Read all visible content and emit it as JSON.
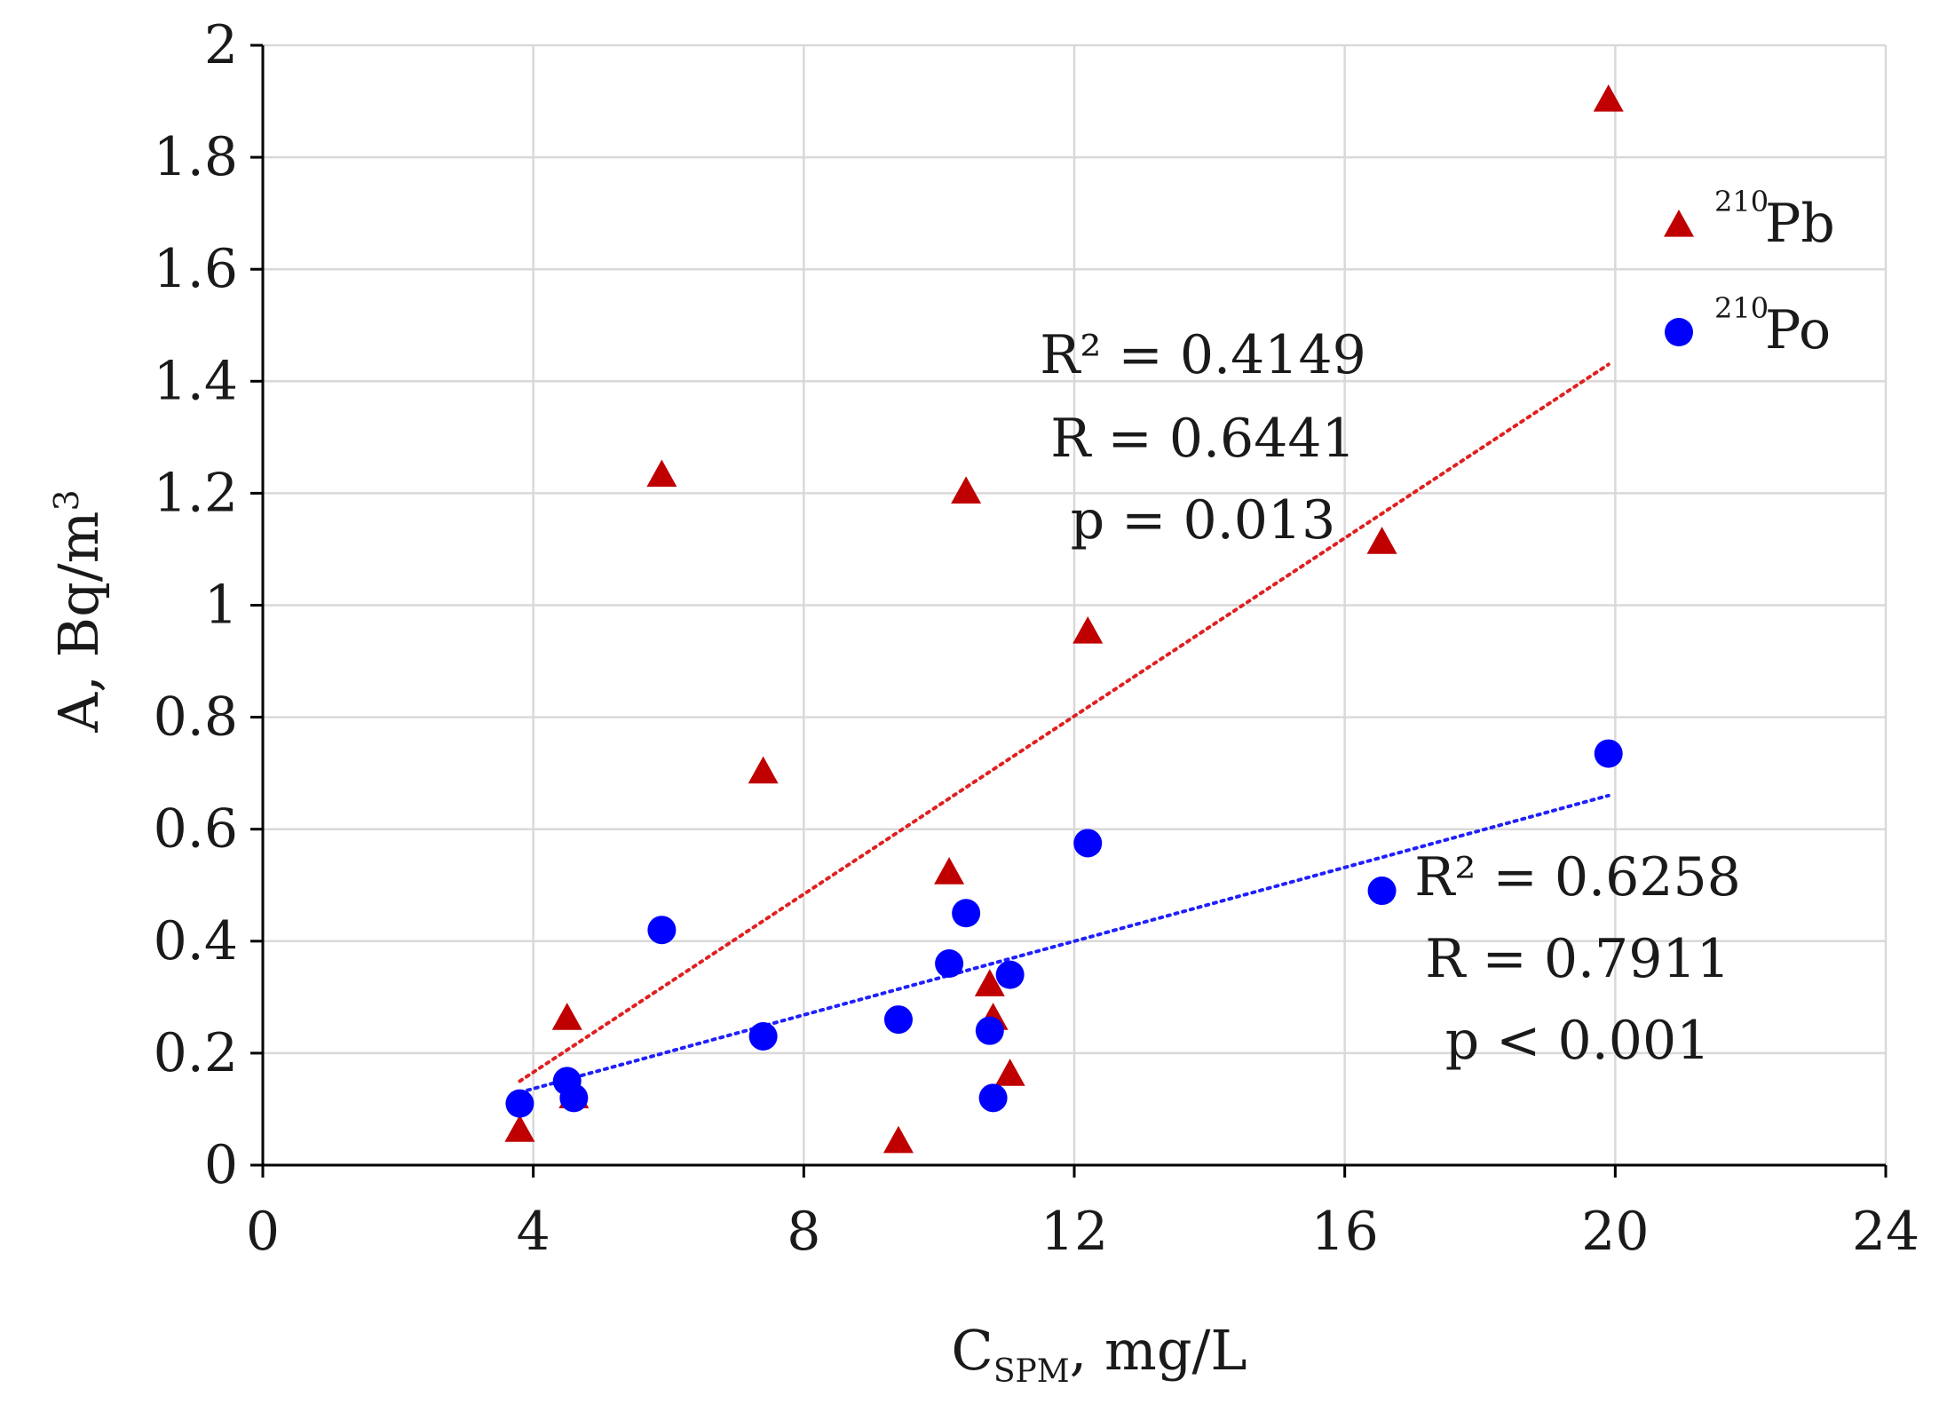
{
  "chart_data": {
    "type": "scatter",
    "title": "",
    "xlabel": {
      "main": "C",
      "sub": "SPM",
      "rest": ", mg/L"
    },
    "ylabel": {
      "main": "A, Bq/m",
      "sup": "3"
    },
    "xlim": [
      0,
      24
    ],
    "ylim": [
      0,
      2
    ],
    "xticks": [
      0,
      4,
      8,
      12,
      16,
      20,
      24
    ],
    "yticks": [
      0,
      0.2,
      0.4,
      0.6,
      0.8,
      1,
      1.2,
      1.4,
      1.6,
      1.8,
      2
    ],
    "xtick_labels": [
      "0",
      "4",
      "8",
      "12",
      "16",
      "20",
      "24"
    ],
    "ytick_labels": [
      "0",
      "0.2",
      "0.4",
      "0.6",
      "0.8",
      "1",
      "1.2",
      "1.4",
      "1.6",
      "1.8",
      "2"
    ],
    "grid": true,
    "legend_position": "top-right",
    "series": [
      {
        "name": "Pb",
        "isotope": "210",
        "marker": "triangle",
        "color": "#c00000",
        "x": [
          3.8,
          4.5,
          4.6,
          5.9,
          7.4,
          9.4,
          10.15,
          10.75,
          10.8,
          11.05,
          12.2,
          10.4,
          16.55,
          19.9
        ],
        "y": [
          0.06,
          0.26,
          0.12,
          1.23,
          0.7,
          0.04,
          0.52,
          0.32,
          0.26,
          0.16,
          0.95,
          1.2,
          1.11,
          1.9
        ],
        "trendline": {
          "x": [
            3.8,
            19.9
          ],
          "y": [
            0.15,
            1.43
          ],
          "color": "#e02020"
        },
        "stats": [
          "R² = 0.4149",
          "R = 0.6441",
          "p = 0.013"
        ]
      },
      {
        "name": "Po",
        "isotope": "210",
        "marker": "circle",
        "color": "#0000ff",
        "x": [
          3.8,
          4.5,
          4.6,
          5.9,
          7.4,
          9.4,
          10.15,
          10.4,
          10.75,
          10.8,
          11.05,
          12.2,
          16.55,
          19.9
        ],
        "y": [
          0.11,
          0.15,
          0.12,
          0.42,
          0.23,
          0.26,
          0.36,
          0.45,
          0.24,
          0.12,
          0.34,
          0.575,
          0.49,
          0.735
        ],
        "trendline": {
          "x": [
            3.8,
            19.9
          ],
          "y": [
            0.13,
            0.66
          ],
          "color": "#2020ff"
        },
        "stats": [
          "R² = 0.6258",
          "R = 0.7911",
          "p < 0.001"
        ]
      }
    ]
  }
}
